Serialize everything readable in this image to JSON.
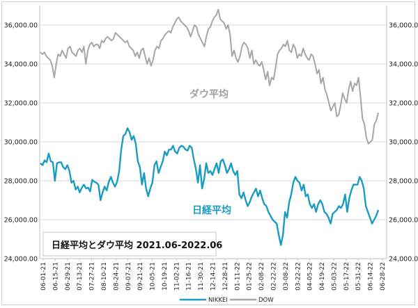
{
  "chart_data": {
    "type": "line",
    "title": "日経平均とダウ平均 2021.06-2022.06",
    "y_left": {
      "range": [
        24000,
        37000
      ],
      "ticks": [
        "24,000.00",
        "26,000.00",
        "28,000.00",
        "30,000.00",
        "32,000.00",
        "34,000.00",
        "36,000.00"
      ],
      "tick_values": [
        24000,
        26000,
        28000,
        30000,
        32000,
        34000,
        36000
      ]
    },
    "y_right": {
      "range": [
        24000,
        37000
      ],
      "ticks": [
        "24,000.00",
        "26,000.00",
        "28,000.00",
        "30,000.00",
        "32,000.00",
        "34,000.00",
        "36,000.00"
      ],
      "tick_values": [
        24000,
        26000,
        28000,
        30000,
        32000,
        34000,
        36000
      ]
    },
    "x_ticks": [
      "06-01-21",
      "06-15-21",
      "06-29-21",
      "07-13-21",
      "07-27-21",
      "08-10-21",
      "08-24-21",
      "09-07-21",
      "09-21-21",
      "10-05-21",
      "10-19-21",
      "11-02-21",
      "11-16-21",
      "11-30-21",
      "12-14-21",
      "12-28-21",
      "01-11-22",
      "01-25-22",
      "02-08-22",
      "02-22-22",
      "03-08-22",
      "03-22-22",
      "04-05-22",
      "04-19-22",
      "05-03-22",
      "05-17-22",
      "05-31-22",
      "06-14-22",
      "06-28-22"
    ],
    "annotations": {
      "dow_label": "ダウ平均",
      "nikkei_label": "日経平均"
    },
    "legend": {
      "position": "bottom",
      "entries": [
        "NIKKEI",
        "DOW"
      ]
    },
    "grid": true,
    "series": [
      {
        "name": "NIKKEI",
        "color": "#1a9cc2",
        "values": [
          28900,
          28800,
          29050,
          28950,
          29400,
          29000,
          28950,
          28000,
          28900,
          28950,
          28950,
          28700,
          28600,
          28800,
          28500,
          27900,
          28000,
          27550,
          27700,
          27400,
          27650,
          27800,
          27600,
          27650,
          27450,
          28050,
          27950,
          27900,
          27800,
          27000,
          27400,
          27700,
          27500,
          27950,
          28200,
          27900,
          27700,
          27950,
          28500,
          29600,
          30300,
          30400,
          30700,
          30500,
          30100,
          30300,
          29900,
          29000,
          28700,
          27800,
          28400,
          27600,
          27200,
          27600,
          27900,
          28800,
          29000,
          28400,
          28700,
          29000,
          29500,
          29300,
          29600,
          29600,
          29800,
          29500,
          29400,
          29700,
          29800,
          29750,
          29600,
          29550,
          29800,
          29700,
          29100,
          28600,
          27900,
          28800,
          27600,
          28100,
          28900,
          28400,
          28500,
          28300,
          28600,
          28900,
          28400,
          29000,
          29100,
          28800,
          28400,
          28600,
          28900,
          28500,
          28300,
          28500,
          27300,
          27100,
          27400,
          27000,
          26700,
          26900,
          27200,
          27400,
          27600,
          27200,
          27500,
          27100,
          26800,
          26700,
          26400,
          26200,
          26000,
          25900,
          25800,
          25200,
          24700,
          25200,
          26400,
          26100,
          26900,
          27300,
          27900,
          28200,
          28000,
          27900,
          27500,
          27800,
          27200,
          27300,
          26800,
          26600,
          26800,
          26400,
          26800,
          27000,
          26800,
          26400,
          26300,
          26100,
          25800,
          26300,
          26400,
          26500,
          26700,
          26600,
          26800,
          27300,
          26400,
          27100,
          27500,
          27800,
          27800,
          27800,
          28200,
          28000,
          27600,
          26700,
          26400,
          26100,
          25800,
          26000,
          26200,
          26500
        ]
      },
      {
        "name": "DOW",
        "color": "#a6a6a6",
        "values": [
          34600,
          34500,
          34600,
          34400,
          34300,
          34200,
          33900,
          33300,
          34000,
          34500,
          34400,
          34700,
          34500,
          34300,
          34800,
          34900,
          34600,
          34500,
          34400,
          34700,
          34800,
          34600,
          34900,
          34000,
          34700,
          35000,
          35100,
          34900,
          35000,
          35000,
          34800,
          35200,
          35100,
          35300,
          35400,
          35300,
          35200,
          35300,
          35600,
          35500,
          35400,
          35300,
          35200,
          35100,
          35200,
          34900,
          34800,
          34700,
          34400,
          34600,
          34300,
          34700,
          34800,
          34400,
          34000,
          34300,
          33900,
          34200,
          34700,
          34900,
          34800,
          35200,
          35300,
          35500,
          35600,
          35700,
          35600,
          35900,
          36100,
          36300,
          36400,
          36200,
          36100,
          36000,
          35900,
          35700,
          35400,
          35700,
          36000,
          35900,
          35500,
          35300,
          35100,
          34900,
          35400,
          35800,
          35900,
          36200,
          36400,
          36500,
          36800,
          36300,
          36200,
          36100,
          35800,
          36000,
          35500,
          34400,
          34700,
          34300,
          34100,
          34400,
          34900,
          35100,
          35000,
          34800,
          34300,
          34700,
          34000,
          34200,
          34000,
          33900,
          34100,
          33700,
          33200,
          33600,
          32900,
          33300,
          33200,
          33800,
          34500,
          34700,
          34800,
          35000,
          34900,
          35200,
          34700,
          34600,
          35000,
          34800,
          34300,
          34500,
          34400,
          34800,
          34500,
          34300,
          34200,
          34500,
          34400,
          34000,
          33500,
          33700,
          33000,
          33300,
          32700,
          32400,
          32000,
          31600,
          31800,
          32000,
          31300,
          31400,
          31900,
          32500,
          32200,
          32000,
          32700,
          33100,
          32600,
          33000,
          32900,
          33300,
          32300,
          31200,
          30900,
          30200,
          29900,
          30000,
          30100,
          30900,
          31100,
          31500
        ]
      }
    ]
  }
}
